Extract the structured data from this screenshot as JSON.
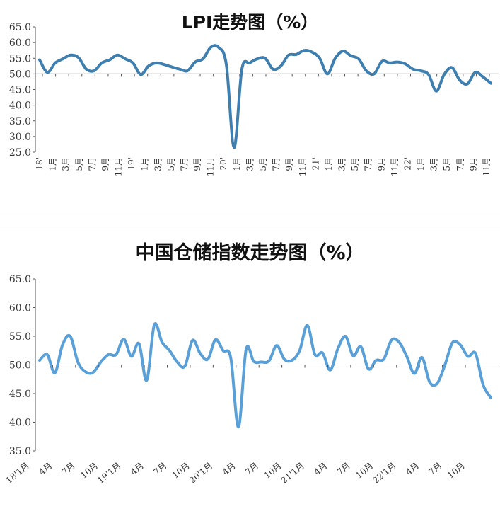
{
  "chart_data": [
    {
      "type": "line",
      "title": "LPI走势图（%）",
      "ylim": [
        25.0,
        65.0
      ],
      "yticks": [
        "65.0",
        "60.0",
        "55.0",
        "50.0",
        "45.0",
        "40.0",
        "35.0",
        "30.0",
        "25.0"
      ],
      "reference_line": 50,
      "x_labels": [
        "18'",
        "1月",
        "3月",
        "5月",
        "7月",
        "9月",
        "11月",
        "19'",
        "1月",
        "3月",
        "5月",
        "7月",
        "9月",
        "11月",
        "20'",
        "1月",
        "3月",
        "5月",
        "7月",
        "9月",
        "11月",
        "21'",
        "1月",
        "3月",
        "5月",
        "7月",
        "9月",
        "11月",
        "22'",
        "1月",
        "3月",
        "5月",
        "7月",
        "9月",
        "11月"
      ],
      "series": [
        {
          "color": "#3f7fb0",
          "values": [
            54.5,
            50.5,
            53.5,
            54.8,
            56.0,
            55.2,
            51.5,
            51.0,
            53.5,
            54.5,
            56.0,
            54.8,
            53.5,
            49.8,
            52.5,
            53.5,
            53.0,
            52.2,
            51.5,
            51.0,
            53.8,
            54.8,
            58.5,
            58.5,
            53.0,
            26.5,
            51.5,
            53.5,
            54.8,
            55.0,
            51.5,
            52.5,
            56.0,
            56.2,
            57.5,
            57.0,
            55.0,
            50.0,
            55.0,
            57.3,
            55.8,
            54.8,
            51.0,
            50.0,
            54.0,
            53.5,
            53.8,
            53.2,
            51.5,
            51.0,
            49.8,
            44.5,
            49.8,
            52.0,
            48.0,
            46.8,
            50.5,
            49.0,
            47.0
          ]
        }
      ]
    },
    {
      "type": "line",
      "title": "中国仓储指数走势图（%）",
      "ylim": [
        35.0,
        65.0
      ],
      "yticks": [
        "65.0",
        "60.0",
        "55.0",
        "50.0",
        "45.0",
        "40.0",
        "35.0"
      ],
      "reference_line": 50,
      "x_labels": [
        "18'1月",
        "4月",
        "7月",
        "10月",
        "19'1月",
        "4月",
        "7月",
        "10月",
        "20'1月",
        "4月",
        "7月",
        "10月",
        "21'1月",
        "4月",
        "7月",
        "10月",
        "22'1月",
        "4月",
        "7月",
        "10月"
      ],
      "series": [
        {
          "color": "#5aa0d8",
          "values": [
            50.8,
            51.8,
            48.6,
            53.5,
            55.0,
            50.5,
            48.8,
            48.7,
            50.5,
            51.8,
            51.8,
            54.5,
            51.5,
            53.7,
            47.3,
            57.0,
            54.0,
            52.5,
            50.5,
            49.8,
            54.3,
            52.0,
            51.0,
            54.4,
            52.5,
            51.2,
            39.2,
            52.7,
            50.6,
            50.5,
            50.7,
            53.4,
            51.0,
            50.8,
            52.5,
            56.9,
            51.8,
            52.1,
            49.1,
            52.8,
            55.0,
            51.6,
            53.2,
            49.3,
            50.8,
            51.0,
            54.3,
            54.0,
            51.5,
            48.5,
            51.3,
            47.0,
            46.8,
            50.0,
            53.9,
            53.5,
            51.5,
            52.0,
            46.5,
            44.3
          ]
        }
      ]
    }
  ]
}
